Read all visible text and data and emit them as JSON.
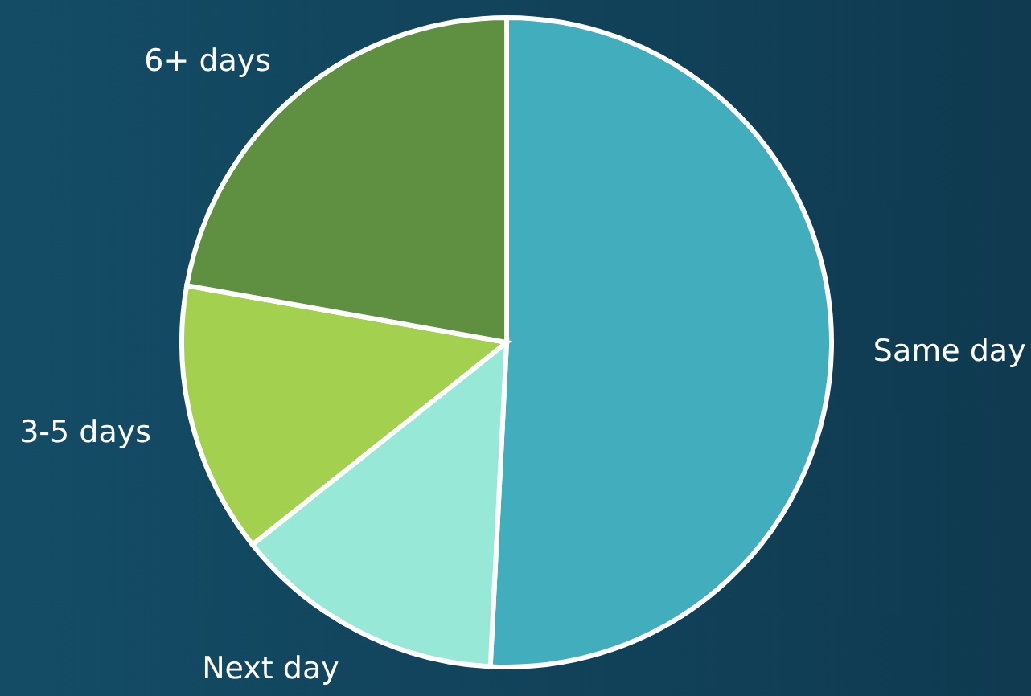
{
  "chart_data": {
    "type": "pie",
    "categories": [
      "Same day",
      "Next day",
      "3-5 days",
      "6+ days"
    ],
    "values": [
      50.8,
      13.5,
      13.5,
      22.2
    ],
    "colors": [
      "#41adbd",
      "#98e8d8",
      "#a3d04e",
      "#5f8f40"
    ],
    "legend": false
  }
}
